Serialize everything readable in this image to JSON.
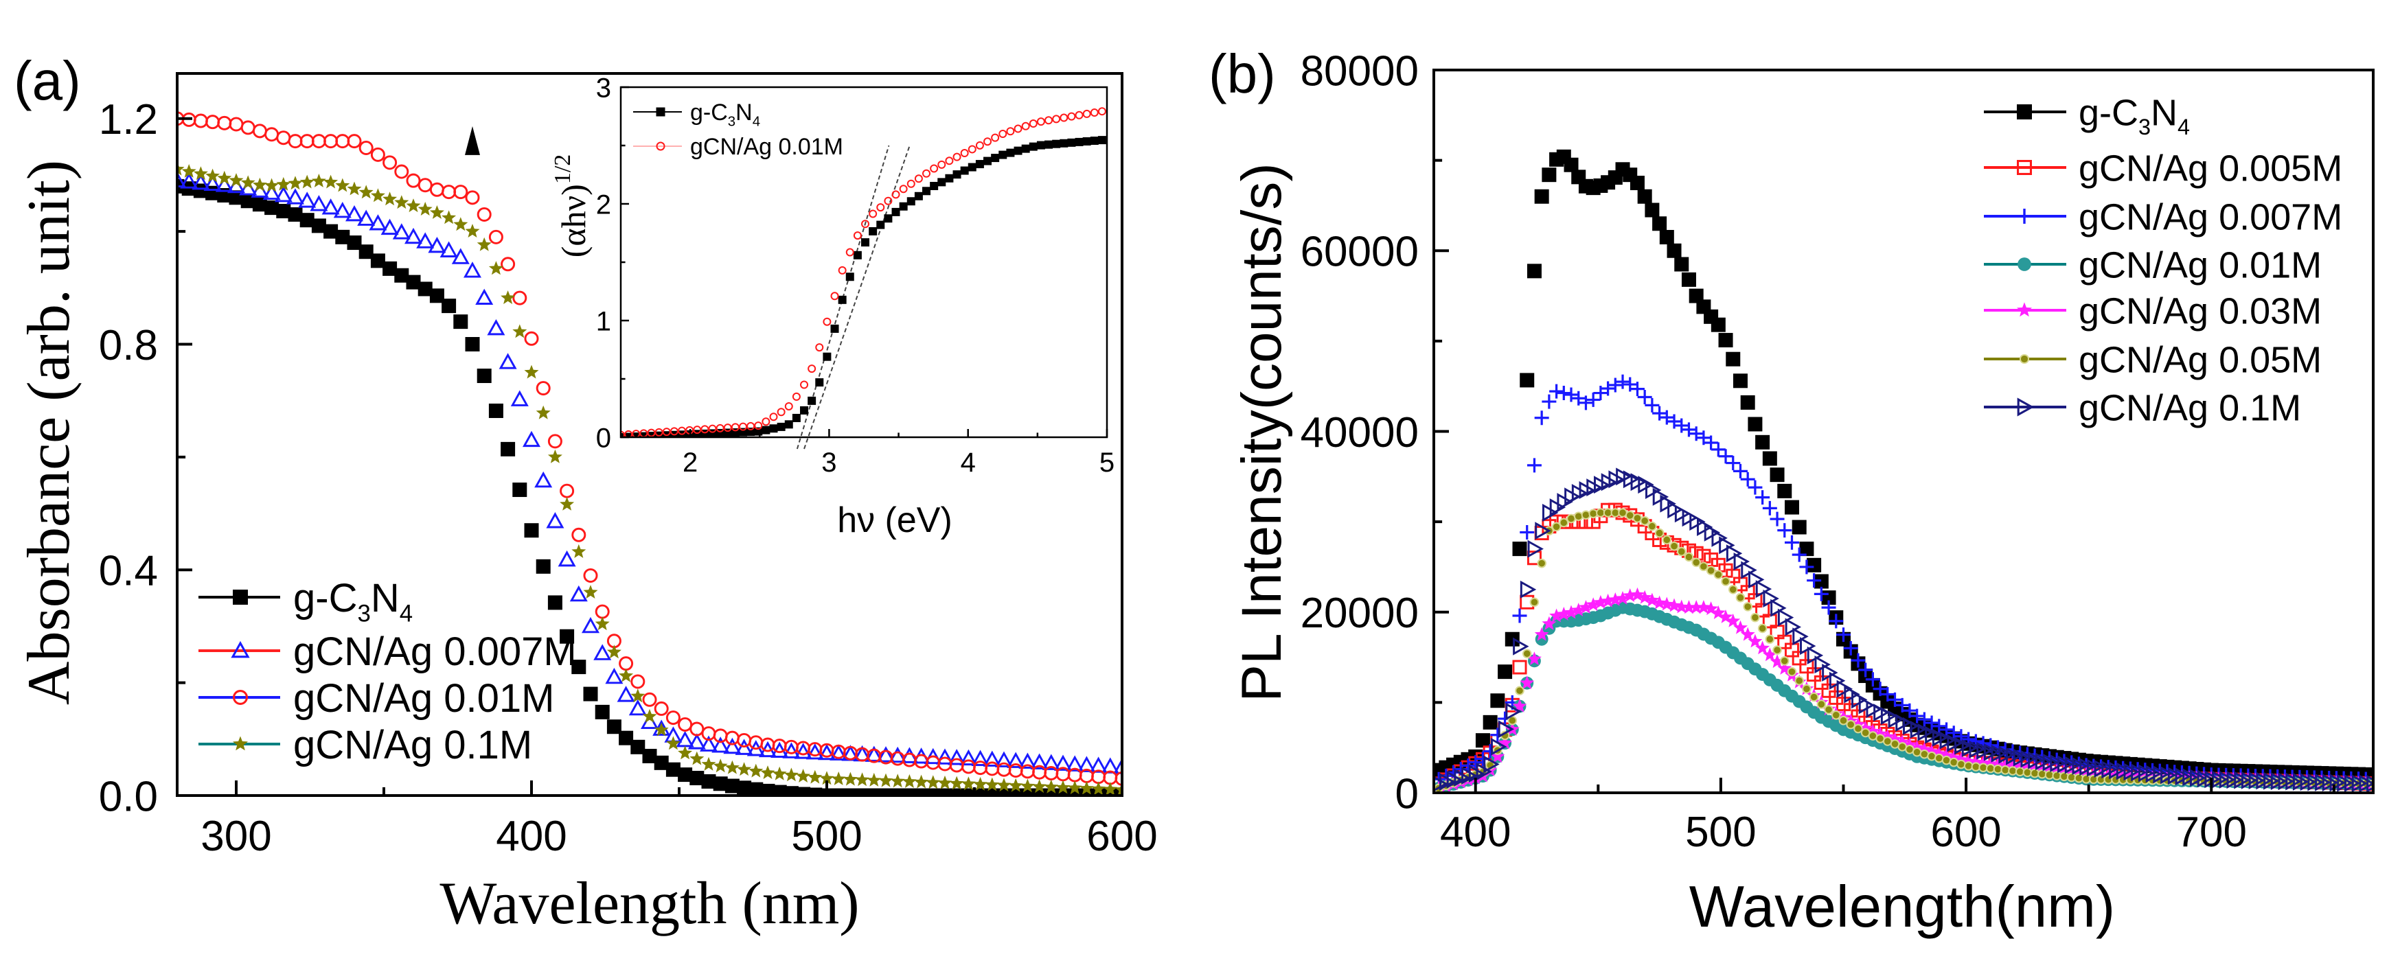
{
  "chart_data": [
    {
      "panel_label": "(a)",
      "type": "scatter",
      "xlabel": "Wavelength (nm)",
      "ylabel": "Absorbance (arb. unit)",
      "xlim": [
        280,
        600
      ],
      "ylim": [
        0,
        1.28
      ],
      "xticks": [
        300,
        400,
        500,
        600
      ],
      "yticks": [
        0.0,
        0.4,
        0.8,
        1.2
      ],
      "ytick_labels": [
        "0.0",
        "0.4",
        "0.8",
        "1.2"
      ],
      "grid": false,
      "legend_position": "bottom-left",
      "annotation": {
        "type": "arrow-up",
        "x": 380,
        "y": 1.15,
        "color": "#000000"
      },
      "series": [
        {
          "name": "g-C3N4",
          "marker": "square-filled",
          "marker_color": "#000000",
          "line_color": "#000000",
          "x": [
            280,
            300,
            320,
            340,
            350,
            360,
            370,
            375,
            380,
            385,
            390,
            395,
            400,
            405,
            410,
            415,
            420,
            425,
            430,
            440,
            450,
            460,
            470,
            480,
            490,
            500,
            550,
            600
          ],
          "y": [
            1.08,
            1.06,
            1.03,
            0.98,
            0.94,
            0.91,
            0.88,
            0.85,
            0.8,
            0.73,
            0.65,
            0.56,
            0.47,
            0.39,
            0.31,
            0.24,
            0.18,
            0.14,
            0.11,
            0.07,
            0.04,
            0.025,
            0.015,
            0.008,
            0.003,
            0,
            0,
            0
          ]
        },
        {
          "name": "gCN/Ag 0.007M",
          "marker": "triangle-open",
          "marker_color": "#1a1aff",
          "line_color": "#ff2020",
          "x": [
            280,
            300,
            320,
            340,
            360,
            375,
            380,
            385,
            390,
            395,
            400,
            405,
            410,
            415,
            420,
            425,
            430,
            440,
            450,
            460,
            480,
            500,
            550,
            600
          ],
          "y": [
            1.09,
            1.08,
            1.06,
            1.03,
            0.99,
            0.96,
            0.93,
            0.87,
            0.8,
            0.72,
            0.63,
            0.54,
            0.45,
            0.37,
            0.3,
            0.24,
            0.19,
            0.13,
            0.1,
            0.09,
            0.08,
            0.075,
            0.065,
            0.05
          ]
        },
        {
          "name": "gCN/Ag 0.01M",
          "marker": "circle-open",
          "marker_color": "#ff1a1a",
          "line_color": "#1a1aff",
          "x": [
            280,
            300,
            320,
            340,
            350,
            360,
            370,
            378,
            382,
            385,
            390,
            395,
            400,
            405,
            410,
            415,
            420,
            425,
            430,
            440,
            450,
            460,
            480,
            500,
            550,
            600
          ],
          "y": [
            1.2,
            1.19,
            1.16,
            1.16,
            1.13,
            1.09,
            1.07,
            1.07,
            1.05,
            1.02,
            0.97,
            0.9,
            0.81,
            0.7,
            0.58,
            0.48,
            0.39,
            0.31,
            0.25,
            0.17,
            0.13,
            0.11,
            0.09,
            0.08,
            0.05,
            0.03
          ]
        },
        {
          "name": "gCN/Ag 0.1M",
          "marker": "star-filled",
          "marker_color": "#808000",
          "line_color": "#008080",
          "x": [
            280,
            300,
            310,
            330,
            350,
            370,
            380,
            385,
            390,
            395,
            400,
            405,
            410,
            415,
            420,
            425,
            430,
            440,
            450,
            460,
            480,
            500,
            550,
            600
          ],
          "y": [
            1.11,
            1.09,
            1.08,
            1.09,
            1.06,
            1.03,
            1.0,
            0.97,
            0.91,
            0.84,
            0.75,
            0.66,
            0.56,
            0.45,
            0.36,
            0.29,
            0.23,
            0.14,
            0.08,
            0.055,
            0.04,
            0.03,
            0.02,
            0.01
          ]
        }
      ],
      "inset": {
        "type": "scatter",
        "xlabel": "hν (eV)",
        "ylabel": "(αhν)",
        "ylabel_superscript": "1/2",
        "xlim": [
          1.5,
          5
        ],
        "ylim": [
          0,
          3
        ],
        "xticks": [
          2,
          3,
          4,
          5
        ],
        "yticks": [
          0,
          1,
          2,
          3
        ],
        "legend_position": "top-left",
        "tangent_lines": [
          {
            "x": [
              2.77,
              3.43
            ],
            "y": [
              -0.1,
              2.5
            ]
          },
          {
            "x": [
              2.82,
              3.58
            ],
            "y": [
              -0.1,
              2.5
            ]
          }
        ],
        "series": [
          {
            "name": "g-C3N4",
            "marker": "square-filled",
            "marker_color": "#000000",
            "line_color": "#000000",
            "x": [
              1.5,
              2.5,
              2.7,
              2.8,
              2.9,
              3.0,
              3.1,
              3.2,
              3.3,
              3.5,
              3.75,
              4.0,
              4.25,
              4.5,
              5.0
            ],
            "y": [
              0,
              0.05,
              0.1,
              0.2,
              0.35,
              0.75,
              1.2,
              1.55,
              1.75,
              1.95,
              2.15,
              2.3,
              2.42,
              2.5,
              2.55
            ]
          },
          {
            "name": "gCN/Ag 0.01M",
            "marker": "circle-open",
            "marker_color": "#ff1a1a",
            "line_color": "#ffb0b0",
            "x": [
              1.5,
              2.5,
              2.7,
              2.8,
              2.9,
              3.0,
              3.1,
              3.2,
              3.3,
              3.5,
              3.75,
              4.0,
              4.25,
              4.5,
              5.0
            ],
            "y": [
              0.02,
              0.1,
              0.25,
              0.4,
              0.65,
              1.05,
              1.45,
              1.72,
              1.9,
              2.1,
              2.3,
              2.45,
              2.6,
              2.7,
              2.8
            ]
          }
        ]
      }
    },
    {
      "panel_label": "(b)",
      "type": "scatter",
      "xlabel": "Wavelength(nm)",
      "ylabel": "PL Intensity(counts/s)",
      "xlim": [
        383,
        766
      ],
      "ylim": [
        0,
        80000
      ],
      "xticks": [
        400,
        500,
        600,
        700
      ],
      "yticks": [
        0,
        20000,
        40000,
        60000,
        80000
      ],
      "ytick_labels": [
        "0",
        "20000",
        "40000",
        "60000",
        "80000"
      ],
      "grid": false,
      "legend_position": "top-right",
      "series": [
        {
          "name": "g-C3N4",
          "marker": "square-filled",
          "marker_color": "#000000",
          "line_color": "#000000",
          "x": [
            385,
            400,
            405,
            410,
            415,
            418,
            420,
            423,
            427,
            432,
            437,
            441,
            446,
            451,
            456,
            460,
            465,
            470,
            475,
            480,
            485,
            490,
            495,
            500,
            505,
            510,
            515,
            520,
            525,
            530,
            535,
            540,
            545,
            550,
            560,
            570,
            580,
            600,
            620,
            650,
            700,
            766
          ],
          "y": [
            2500,
            4000,
            7000,
            11000,
            17000,
            27000,
            41000,
            55000,
            66000,
            70000,
            70500,
            68500,
            66800,
            67200,
            67800,
            69000,
            68000,
            65500,
            63000,
            60500,
            58000,
            55000,
            53000,
            51500,
            48000,
            44000,
            40000,
            37000,
            34000,
            31000,
            27000,
            24000,
            21000,
            17000,
            12500,
            9500,
            7500,
            5500,
            4500,
            3500,
            2500,
            2000
          ]
        },
        {
          "name": "gCN/Ag 0.005M",
          "marker": "square-open",
          "marker_color": "#ff1a1a",
          "line_color": "#ff1a1a",
          "x": [
            385,
            405,
            412,
            417,
            422,
            426,
            432,
            440,
            448,
            455,
            465,
            475,
            485,
            495,
            505,
            515,
            525,
            535,
            545,
            560,
            580,
            600,
            650,
            700,
            766
          ],
          "y": [
            1000,
            4000,
            7000,
            11500,
            23500,
            28500,
            30000,
            30000,
            30000,
            31500,
            30500,
            28000,
            27000,
            26000,
            24000,
            21000,
            17000,
            14000,
            11000,
            7500,
            5000,
            3500,
            2000,
            1500,
            1000
          ]
        },
        {
          "name": "gCN/Ag 0.007M",
          "marker": "plus",
          "marker_color": "#1a1aff",
          "line_color": "#1a1aff",
          "x": [
            385,
            405,
            415,
            420,
            423,
            427,
            432,
            440,
            446,
            452,
            460,
            465,
            475,
            485,
            495,
            505,
            515,
            525,
            535,
            545,
            555,
            565,
            580,
            600,
            620,
            650,
            700,
            766
          ],
          "y": [
            1500,
            4000,
            10000,
            26000,
            34500,
            41500,
            44500,
            44000,
            43000,
            44500,
            45500,
            45000,
            42000,
            40500,
            39000,
            36500,
            33500,
            29500,
            25000,
            20000,
            15000,
            11500,
            8500,
            6000,
            4500,
            3000,
            2000,
            1500
          ]
        },
        {
          "name": "gCN/Ag 0.01M",
          "marker": "ball",
          "marker_color": "#2a9a9a",
          "line_color": "#008080",
          "x": [
            385,
            405,
            415,
            422,
            427,
            432,
            440,
            450,
            460,
            470,
            480,
            490,
            500,
            510,
            520,
            530,
            540,
            550,
            560,
            580,
            600,
            650,
            766
          ],
          "y": [
            500,
            2000,
            7000,
            13000,
            17000,
            19000,
            19000,
            19500,
            20500,
            20000,
            19000,
            18000,
            16500,
            14500,
            12500,
            10500,
            8500,
            7000,
            6000,
            4000,
            3000,
            1500,
            1000
          ]
        },
        {
          "name": "gCN/Ag 0.03M",
          "marker": "star-filled",
          "marker_color": "#ff20ff",
          "line_color": "#ff20ff",
          "x": [
            385,
            405,
            415,
            422,
            427,
            432,
            440,
            450,
            460,
            465,
            475,
            485,
            495,
            505,
            515,
            525,
            535,
            545,
            560,
            580,
            600,
            650,
            766
          ],
          "y": [
            500,
            2000,
            7000,
            13000,
            17500,
            19500,
            20000,
            21000,
            21500,
            22000,
            21000,
            20500,
            20500,
            19000,
            16500,
            14000,
            11500,
            9000,
            7000,
            5000,
            3500,
            2000,
            1000
          ]
        },
        {
          "name": "gCN/Ag 0.05M",
          "marker": "dot",
          "marker_color": "#8a8a10",
          "line_color": "#808000",
          "x": [
            385,
            405,
            415,
            420,
            425,
            430,
            440,
            450,
            460,
            470,
            480,
            490,
            500,
            510,
            520,
            530,
            540,
            550,
            560,
            580,
            600,
            650,
            766
          ],
          "y": [
            500,
            2500,
            8000,
            13500,
            23000,
            29000,
            30500,
            31000,
            31000,
            30000,
            27500,
            25500,
            24000,
            21000,
            17000,
            13000,
            10000,
            8000,
            6500,
            4500,
            3000,
            1500,
            1000
          ]
        },
        {
          "name": "gCN/Ag 0.1M",
          "marker": "triangle-right-open",
          "marker_color": "#1a1a80",
          "line_color": "#1a1a80",
          "x": [
            385,
            405,
            415,
            420,
            424,
            430,
            440,
            450,
            460,
            470,
            480,
            490,
            500,
            510,
            520,
            530,
            540,
            550,
            560,
            580,
            600,
            630,
            660,
            700,
            766
          ],
          "y": [
            1000,
            2500,
            9000,
            21000,
            27000,
            31000,
            33000,
            34000,
            35000,
            34000,
            31500,
            30000,
            28000,
            25000,
            21500,
            18000,
            14500,
            11500,
            9500,
            7000,
            5000,
            3500,
            2500,
            1500,
            1000
          ]
        }
      ]
    }
  ]
}
